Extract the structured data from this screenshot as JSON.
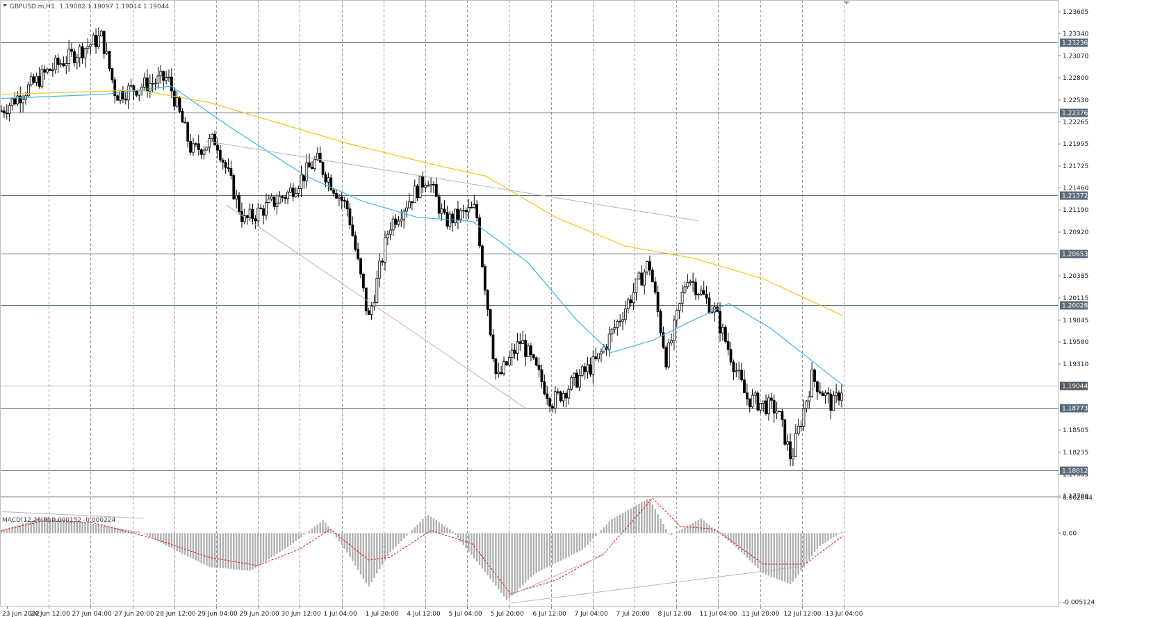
{
  "window": {
    "title": "GBPUSD.m,H1",
    "ohlc": "1.19082 1.19097 1.19014 1.19044"
  },
  "macd": {
    "label": "MACD(12,26,9) 0.000152 -0.000224",
    "ticks": [
      "0.002644",
      "0.00",
      "-0.005124"
    ],
    "tick_values": [
      0.002644,
      0.0,
      -0.005124
    ]
  },
  "price_axis": {
    "ticks": [
      "1.23605",
      "1.23340",
      "1.23070",
      "1.22800",
      "1.22530",
      "1.22265",
      "1.21995",
      "1.21725",
      "1.21460",
      "1.21190",
      "1.20920",
      "1.20385",
      "1.20115",
      "1.19845",
      "1.19580",
      "1.19310",
      "1.18505",
      "1.18235",
      "1.17965",
      "1.17700"
    ],
    "tick_values": [
      1.23605,
      1.2334,
      1.2307,
      1.228,
      1.2253,
      1.22265,
      1.21995,
      1.21725,
      1.2146,
      1.2119,
      1.2092,
      1.20385,
      1.20115,
      1.19845,
      1.1958,
      1.1931,
      1.18505,
      1.18235,
      1.17965,
      1.177
    ]
  },
  "levels": [
    {
      "label": "1.23236",
      "value": 1.23236
    },
    {
      "label": "1.22376",
      "value": 1.22376
    },
    {
      "label": "1.21372",
      "value": 1.21372
    },
    {
      "label": "1.20653",
      "value": 1.20653
    },
    {
      "label": "1.20028",
      "value": 1.20028
    },
    {
      "label": "1.19044",
      "value": 1.19044,
      "current": true
    },
    {
      "label": "1.18773",
      "value": 1.18773
    },
    {
      "label": "1.18012",
      "value": 1.18012
    }
  ],
  "time_axis": {
    "labels": [
      "23 Jun 2022",
      "24 Jun 12:00",
      "27 Jun 04:00",
      "27 Jun 20:00",
      "28 Jun 12:00",
      "29 Jun 04:00",
      "29 Jun 20:00",
      "30 Jun 12:00",
      "1 Jul 04:00",
      "1 Jul 20:00",
      "4 Jul 12:00",
      "5 Jul 04:00",
      "5 Jul 20:00",
      "6 Jul 12:00",
      "7 Jul 04:00",
      "7 Jul 20:00",
      "8 Jul 12:00",
      "11 Jul 04:00",
      "11 Jul 20:00",
      "12 Jul 12:00",
      "13 Jul 04:00"
    ]
  },
  "colors": {
    "candle": "#000000",
    "ma_fast": "#3fb5e6",
    "ma_slow": "#f2c31b",
    "level_line": "#5a6b7a",
    "level_tag": "#5a6b7a",
    "grid": "#9a9a9a",
    "trendline": "#b4b4b4",
    "macd_hist": "#b0b0b0",
    "macd_signal": "#e02020"
  },
  "chart_data": {
    "type": "candlestick",
    "symbol": "GBPUSD.m",
    "timeframe": "H1",
    "ylim": [
      1.177,
      1.2375
    ],
    "xlim": [
      0,
      1220
    ],
    "key_prices": [
      {
        "t": 0,
        "price": 1.224
      },
      {
        "t": 70,
        "price": 1.229
      },
      {
        "t": 145,
        "price": 1.233
      },
      {
        "t": 165,
        "price": 1.226
      },
      {
        "t": 240,
        "price": 1.228
      },
      {
        "t": 275,
        "price": 1.219
      },
      {
        "t": 310,
        "price": 1.2205
      },
      {
        "t": 350,
        "price": 1.2105
      },
      {
        "t": 415,
        "price": 1.214
      },
      {
        "t": 455,
        "price": 1.218
      },
      {
        "t": 500,
        "price": 1.212
      },
      {
        "t": 530,
        "price": 1.1985
      },
      {
        "t": 560,
        "price": 1.21
      },
      {
        "t": 615,
        "price": 1.216
      },
      {
        "t": 640,
        "price": 1.2105
      },
      {
        "t": 685,
        "price": 1.212
      },
      {
        "t": 715,
        "price": 1.191
      },
      {
        "t": 750,
        "price": 1.196
      },
      {
        "t": 795,
        "price": 1.1885
      },
      {
        "t": 860,
        "price": 1.1935
      },
      {
        "t": 935,
        "price": 1.2055
      },
      {
        "t": 960,
        "price": 1.1935
      },
      {
        "t": 990,
        "price": 1.204
      },
      {
        "t": 1030,
        "price": 1.1995
      },
      {
        "t": 1075,
        "price": 1.189
      },
      {
        "t": 1120,
        "price": 1.1875
      },
      {
        "t": 1140,
        "price": 1.1815
      },
      {
        "t": 1170,
        "price": 1.1915
      },
      {
        "t": 1200,
        "price": 1.188
      },
      {
        "t": 1215,
        "price": 1.19044
      }
    ],
    "ma_fast": [
      {
        "t": 0,
        "price": 1.2255
      },
      {
        "t": 150,
        "price": 1.226
      },
      {
        "t": 245,
        "price": 1.227
      },
      {
        "t": 330,
        "price": 1.222
      },
      {
        "t": 440,
        "price": 1.216
      },
      {
        "t": 520,
        "price": 1.213
      },
      {
        "t": 600,
        "price": 1.211
      },
      {
        "t": 680,
        "price": 1.2105
      },
      {
        "t": 760,
        "price": 1.2055
      },
      {
        "t": 830,
        "price": 1.1985
      },
      {
        "t": 880,
        "price": 1.1945
      },
      {
        "t": 940,
        "price": 1.196
      },
      {
        "t": 1000,
        "price": 1.1985
      },
      {
        "t": 1050,
        "price": 1.2005
      },
      {
        "t": 1110,
        "price": 1.1975
      },
      {
        "t": 1170,
        "price": 1.1935
      },
      {
        "t": 1215,
        "price": 1.1905
      }
    ],
    "ma_slow": [
      {
        "t": 0,
        "price": 1.226
      },
      {
        "t": 200,
        "price": 1.2265
      },
      {
        "t": 300,
        "price": 1.225
      },
      {
        "t": 400,
        "price": 1.2225
      },
      {
        "t": 500,
        "price": 1.22
      },
      {
        "t": 620,
        "price": 1.2175
      },
      {
        "t": 700,
        "price": 1.216
      },
      {
        "t": 800,
        "price": 1.211
      },
      {
        "t": 900,
        "price": 1.2075
      },
      {
        "t": 1000,
        "price": 1.206
      },
      {
        "t": 1100,
        "price": 1.2035
      },
      {
        "t": 1215,
        "price": 1.199
      }
    ],
    "trendlines": [
      {
        "t1": 295,
        "p1": 1.2203,
        "t2": 1005,
        "p2": 1.2106
      },
      {
        "t1": 325,
        "p1": 1.2125,
        "t2": 757,
        "p2": 1.1877
      }
    ],
    "macd_hist": [
      {
        "t": 0,
        "v": 0.0002
      },
      {
        "t": 60,
        "v": 0.0012
      },
      {
        "t": 120,
        "v": 0.0008
      },
      {
        "t": 200,
        "v": 0.0001
      },
      {
        "t": 260,
        "v": -0.0015
      },
      {
        "t": 300,
        "v": -0.0025
      },
      {
        "t": 360,
        "v": -0.0028
      },
      {
        "t": 420,
        "v": -0.0008
      },
      {
        "t": 465,
        "v": 0.001
      },
      {
        "t": 500,
        "v": -0.0015
      },
      {
        "t": 530,
        "v": -0.004
      },
      {
        "t": 560,
        "v": -0.0015
      },
      {
        "t": 615,
        "v": 0.0014
      },
      {
        "t": 650,
        "v": 0.0002
      },
      {
        "t": 700,
        "v": -0.003
      },
      {
        "t": 730,
        "v": -0.005
      },
      {
        "t": 770,
        "v": -0.003
      },
      {
        "t": 840,
        "v": -0.0012
      },
      {
        "t": 880,
        "v": 0.001
      },
      {
        "t": 935,
        "v": 0.0026
      },
      {
        "t": 965,
        "v": -0.0002
      },
      {
        "t": 1010,
        "v": 0.0011
      },
      {
        "t": 1060,
        "v": -0.001
      },
      {
        "t": 1100,
        "v": -0.003
      },
      {
        "t": 1140,
        "v": -0.0038
      },
      {
        "t": 1180,
        "v": -0.001
      },
      {
        "t": 1215,
        "v": 0.00015
      }
    ],
    "macd_signal": [
      {
        "t": 0,
        "v": 0.0002
      },
      {
        "t": 60,
        "v": 0.0009
      },
      {
        "t": 130,
        "v": 0.0008
      },
      {
        "t": 220,
        "v": -0.0004
      },
      {
        "t": 300,
        "v": -0.0018
      },
      {
        "t": 370,
        "v": -0.0024
      },
      {
        "t": 430,
        "v": -0.0012
      },
      {
        "t": 475,
        "v": 0.0003
      },
      {
        "t": 530,
        "v": -0.002
      },
      {
        "t": 560,
        "v": -0.0018
      },
      {
        "t": 620,
        "v": 0.0002
      },
      {
        "t": 680,
        "v": -0.0008
      },
      {
        "t": 735,
        "v": -0.0045
      },
      {
        "t": 800,
        "v": -0.0035
      },
      {
        "t": 870,
        "v": -0.0015
      },
      {
        "t": 940,
        "v": 0.0026
      },
      {
        "t": 980,
        "v": 0.0005
      },
      {
        "t": 1030,
        "v": 0.0003
      },
      {
        "t": 1100,
        "v": -0.0023
      },
      {
        "t": 1160,
        "v": -0.0023
      },
      {
        "t": 1215,
        "v": -0.0002
      }
    ],
    "macd_trendlines": [
      {
        "t1": 0,
        "v1": 0.0016,
        "t2": 205,
        "v2": 0.0011
      },
      {
        "t1": 735,
        "v1": -0.0046,
        "t2": 870,
        "v2": -0.0016
      },
      {
        "t1": 735,
        "v1": -0.0052,
        "t2": 1150,
        "v2": -0.0025
      }
    ]
  }
}
